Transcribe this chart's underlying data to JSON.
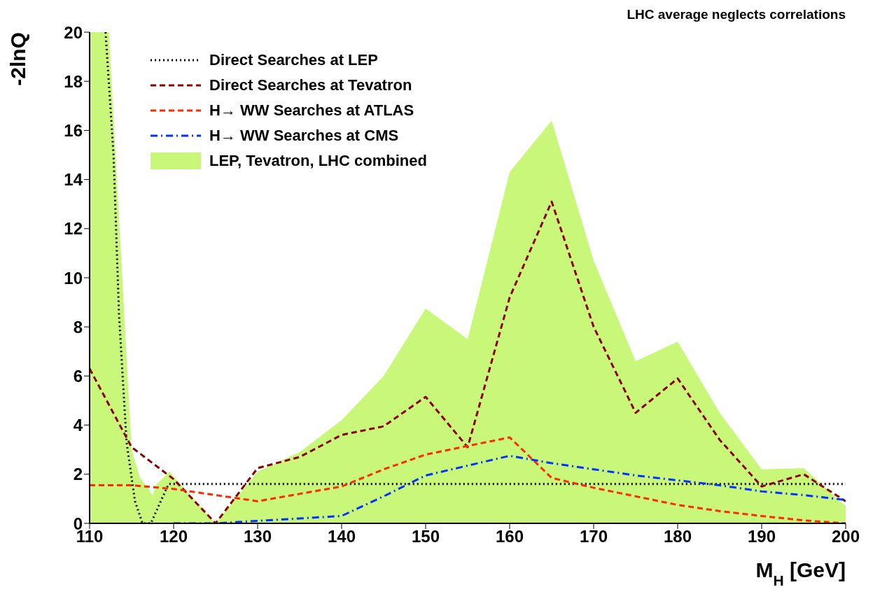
{
  "chart_data": {
    "type": "line",
    "xlabel": "M$_{H}$ [GeV]",
    "ylabel": "-2lnQ",
    "annotations": [
      "LHC average neglects correlations"
    ],
    "xlim": [
      110,
      200
    ],
    "xticks": [
      110,
      120,
      130,
      140,
      150,
      160,
      170,
      180,
      190,
      200
    ],
    "ylim": [
      0,
      20
    ],
    "yticks": [
      0,
      2,
      4,
      6,
      8,
      10,
      12,
      14,
      16,
      18,
      20
    ],
    "grid": false,
    "legend": "top left",
    "marker": "none",
    "series": [
      {
        "name": "Direct Searches at LEP",
        "color": "#000000",
        "line_style": "dotted",
        "x": [
          111.9,
          112.85,
          113.5,
          114.4,
          115.4,
          116.3,
          117.3,
          118.4,
          119.4,
          120,
          130,
          140,
          150,
          160,
          170,
          180,
          190,
          200
        ],
        "values": [
          20,
          15,
          8.5,
          3.3,
          0.9,
          0,
          0,
          0.85,
          1.6,
          1.6,
          1.6,
          1.6,
          1.6,
          1.6,
          1.6,
          1.6,
          1.6,
          1.6
        ]
      },
      {
        "name": "Direct Searches at Tevatron",
        "color": "#8b0000",
        "line_style": "dashed",
        "x": [
          110,
          115,
          120,
          125,
          130,
          135,
          140,
          145,
          150,
          155,
          160,
          165,
          170,
          175,
          180,
          185,
          190,
          195,
          200
        ],
        "values": [
          6.3,
          3.1,
          1.8,
          0,
          2.25,
          2.7,
          3.6,
          3.95,
          5.15,
          3.1,
          9.2,
          13.1,
          8.0,
          4.5,
          5.9,
          3.4,
          1.5,
          2.0,
          0.9
        ]
      },
      {
        "name": "H→ WW Searches at ATLAS",
        "color": "#ff2a00",
        "line_style": "dashed",
        "x": [
          110,
          115,
          120,
          125,
          130,
          135,
          140,
          145,
          150,
          155,
          160,
          165,
          170,
          175,
          180,
          185,
          190,
          195,
          200
        ],
        "values": [
          1.55,
          1.55,
          1.4,
          1.15,
          0.9,
          1.2,
          1.5,
          2.2,
          2.8,
          3.15,
          3.5,
          1.85,
          1.45,
          1.1,
          0.75,
          0.5,
          0.3,
          0.12,
          0
        ]
      },
      {
        "name": "H→ WW Searches at CMS",
        "color": "#0033ff",
        "line_style": "dashdot",
        "x": [
          120,
          125,
          130,
          135,
          140,
          145,
          150,
          155,
          160,
          165,
          170,
          175,
          180,
          185,
          190,
          195,
          200
        ],
        "values": [
          0,
          0,
          0.1,
          0.2,
          0.3,
          1.1,
          1.95,
          2.35,
          2.75,
          2.45,
          2.2,
          1.95,
          1.75,
          1.55,
          1.3,
          1.15,
          0.95
        ]
      },
      {
        "name": "LEP, Tevatron, LHC combined",
        "color": "#c8f77a",
        "type": "area",
        "x": [
          110,
          112.3,
          115,
          116,
          117,
          117.5,
          118,
          119.5,
          125,
          130,
          135,
          140,
          145,
          150,
          155,
          160,
          165,
          170,
          175,
          180,
          185,
          190,
          195,
          200
        ],
        "values": [
          20,
          20,
          3.0,
          1.85,
          1.4,
          1.15,
          1.6,
          2.1,
          0,
          2.1,
          2.9,
          4.2,
          6.0,
          8.75,
          7.5,
          14.3,
          16.4,
          10.7,
          6.6,
          7.4,
          4.5,
          2.2,
          2.25,
          0.7
        ]
      }
    ]
  }
}
